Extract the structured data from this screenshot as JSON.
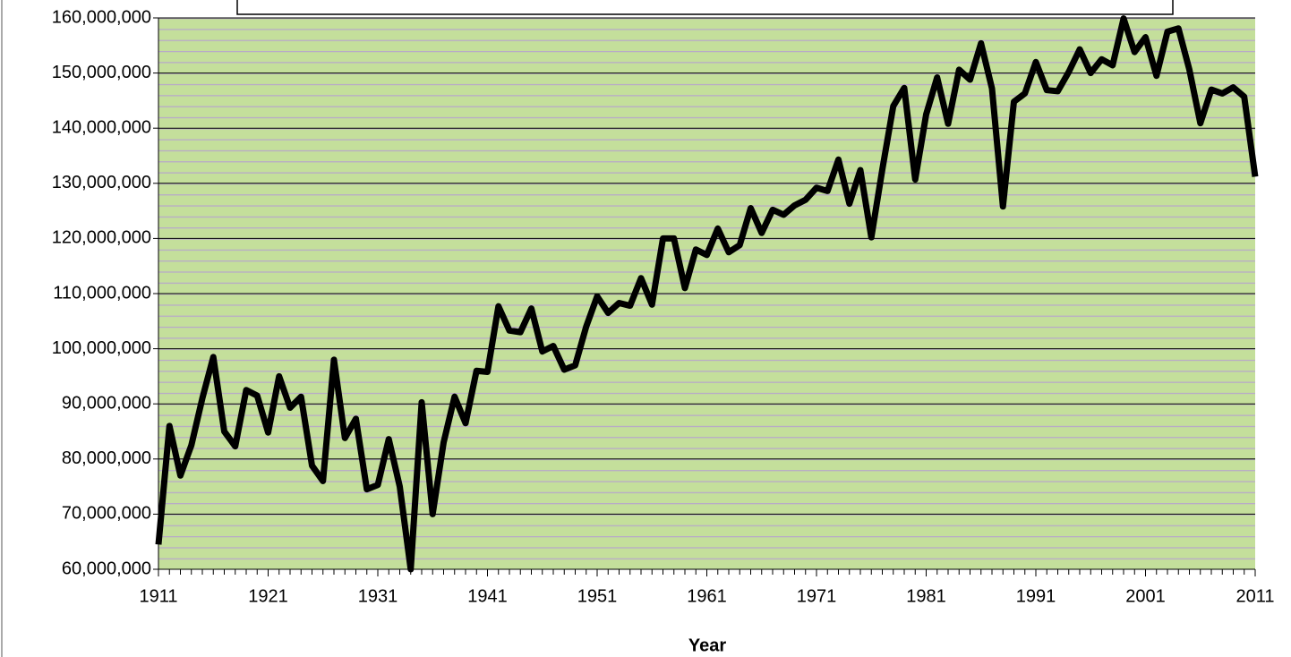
{
  "chart_data": {
    "type": "line",
    "x_label": "Year",
    "x": [
      1911,
      1912,
      1913,
      1914,
      1915,
      1916,
      1917,
      1918,
      1919,
      1920,
      1921,
      1922,
      1923,
      1924,
      1925,
      1926,
      1927,
      1928,
      1929,
      1930,
      1931,
      1932,
      1933,
      1934,
      1935,
      1936,
      1937,
      1938,
      1939,
      1940,
      1941,
      1942,
      1943,
      1944,
      1945,
      1946,
      1947,
      1948,
      1949,
      1950,
      1951,
      1952,
      1953,
      1954,
      1955,
      1956,
      1957,
      1958,
      1959,
      1960,
      1961,
      1962,
      1963,
      1964,
      1965,
      1966,
      1967,
      1968,
      1969,
      1970,
      1971,
      1972,
      1973,
      1974,
      1975,
      1976,
      1977,
      1978,
      1979,
      1980,
      1981,
      1982,
      1983,
      1984,
      1985,
      1986,
      1987,
      1988,
      1989,
      1990,
      1991,
      1992,
      1993,
      1994,
      1995,
      1996,
      1997,
      1998,
      1999,
      2000,
      2001,
      2002,
      2003,
      2004,
      2005,
      2006,
      2007,
      2008,
      2009,
      2010,
      2011
    ],
    "series": [
      {
        "color": "#000000",
        "values": [
          64500000,
          86000000,
          77000000,
          82500000,
          91000000,
          98500000,
          85000000,
          82300000,
          92500000,
          91500000,
          84800000,
          95000000,
          89300000,
          91300000,
          78800000,
          76000000,
          98000000,
          83800000,
          87300000,
          74500000,
          75300000,
          83600000,
          75000000,
          60000000,
          90300000,
          70000000,
          83000000,
          91300000,
          86500000,
          96000000,
          95800000,
          107700000,
          103300000,
          103000000,
          107300000,
          99500000,
          100500000,
          96200000,
          97000000,
          104000000,
          109500000,
          106500000,
          108300000,
          107800000,
          112800000,
          108000000,
          120000000,
          120000000,
          111000000,
          118000000,
          117000000,
          121800000,
          117500000,
          118800000,
          125500000,
          121000000,
          125200000,
          124300000,
          126000000,
          127000000,
          129200000,
          128600000,
          134300000,
          126300000,
          132400000,
          120200000,
          132500000,
          144000000,
          147300000,
          130700000,
          142500000,
          149200000,
          140800000,
          150600000,
          148800000,
          155400000,
          147200000,
          125800000,
          144800000,
          146300000,
          152000000,
          146900000,
          146700000,
          150200000,
          154300000,
          150000000,
          152500000,
          151400000,
          159900000,
          153800000,
          156500000,
          149500000,
          157500000,
          158100000,
          150600000,
          140900000,
          147000000,
          146300000,
          147400000,
          145700000,
          131200000
        ]
      }
    ],
    "xlim": [
      1911,
      2011
    ],
    "xticks": [
      1911,
      1921,
      1931,
      1941,
      1951,
      1961,
      1971,
      1981,
      1991,
      2001,
      2011
    ],
    "ylim": [
      60000000,
      160000000
    ],
    "yticks": [
      {
        "value": 60000000,
        "label": "60,000,000"
      },
      {
        "value": 70000000,
        "label": "70,000,000"
      },
      {
        "value": 80000000,
        "label": "80,000,000"
      },
      {
        "value": 90000000,
        "label": "90,000,000"
      },
      {
        "value": 100000000,
        "label": "100,000,000"
      },
      {
        "value": 110000000,
        "label": "110,000,000"
      },
      {
        "value": 120000000,
        "label": "120,000,000"
      },
      {
        "value": 130000000,
        "label": "130,000,000"
      },
      {
        "value": 140000000,
        "label": "140,000,000"
      },
      {
        "value": 150000000,
        "label": "150,000,000"
      },
      {
        "value": 160000000,
        "label": "160,000,000"
      }
    ],
    "grid": true,
    "plot_background": "#c4df9b"
  }
}
